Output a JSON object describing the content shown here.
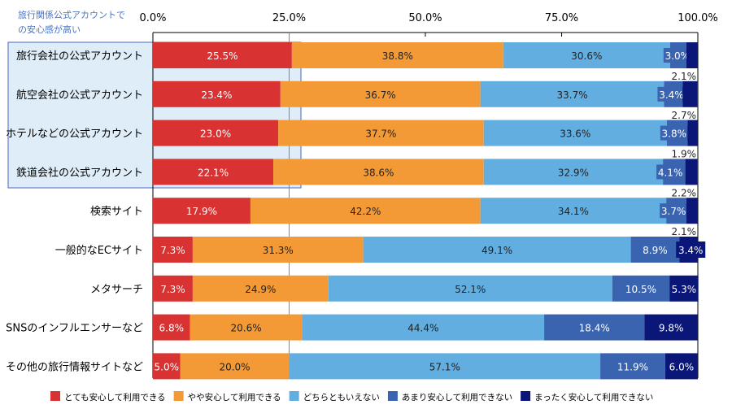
{
  "chart_data": {
    "type": "bar",
    "stacked": true,
    "orientation": "horizontal",
    "annotation": "旅行関係公式アカウントでの安心感が高い",
    "xlim": [
      0,
      100
    ],
    "x_ticks": [
      "0.0%",
      "25.0%",
      "50.0%",
      "75.0%",
      "100.0%"
    ],
    "categories": [
      "旅行会社の公式アカウント",
      "航空会社の公式アカウント",
      "ホテルなどの公式アカウント",
      "鉄道会社の公式アカウント",
      "検索サイト",
      "一般的なECサイト",
      "メタサーチ",
      "SNSのインフルエンサーなど",
      "その他の旅行情報サイトなど"
    ],
    "highlighted_categories": 4,
    "series": [
      {
        "name": "とても安心して利用できる",
        "color": "#d93232",
        "values": [
          25.5,
          23.4,
          23.0,
          22.1,
          17.9,
          7.3,
          7.3,
          6.8,
          5.0
        ]
      },
      {
        "name": "やや安心して利用できる",
        "color": "#f39a36",
        "values": [
          38.8,
          36.7,
          37.7,
          38.6,
          42.2,
          31.3,
          24.9,
          20.6,
          20.0
        ]
      },
      {
        "name": "どちらともいえない",
        "color": "#62aee0",
        "values": [
          30.6,
          33.7,
          33.6,
          32.9,
          34.1,
          49.1,
          52.1,
          44.4,
          57.1
        ]
      },
      {
        "name": "あまり安心して利用できない",
        "color": "#3a64b0",
        "values": [
          3.0,
          3.4,
          3.8,
          4.1,
          3.7,
          8.9,
          10.5,
          18.4,
          11.9
        ]
      },
      {
        "name": "まったく安心して利用できない",
        "color": "#0a1678",
        "values": [
          2.1,
          2.7,
          1.9,
          2.2,
          2.1,
          3.4,
          5.3,
          9.8,
          6.0
        ]
      }
    ],
    "legend": "bottom"
  }
}
